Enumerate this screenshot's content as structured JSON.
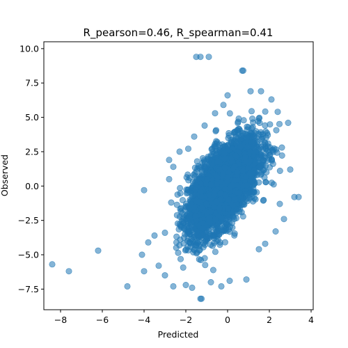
{
  "chart_data": {
    "type": "scatter",
    "title": "R_pearson=0.46, R_spearman=0.41",
    "xlabel": "Predicted",
    "ylabel": "Observed",
    "xlim": [
      -8.8,
      4.1
    ],
    "ylim": [
      -9.0,
      10.5
    ],
    "xticks": [
      -8,
      -6,
      -4,
      -2,
      0,
      2,
      4
    ],
    "yticks": [
      -7.5,
      -5.0,
      -2.5,
      0.0,
      2.5,
      5.0,
      7.5,
      10.0
    ],
    "xtick_labels": [
      "−8",
      "−6",
      "−4",
      "−2",
      "0",
      "2",
      "4"
    ],
    "ytick_labels": [
      "−7.5",
      "−5.0",
      "−2.5",
      "0.0",
      "2.5",
      "5.0",
      "7.5",
      "10.0"
    ],
    "grid": false,
    "point_color": "#1f77b4",
    "point_alpha": 0.55,
    "cloud": {
      "description_of_shape": "dense elliptical cloud of many thousands of points",
      "center": [
        -0.2,
        0.0
      ],
      "x_range": [
        -2.5,
        2.8
      ],
      "y_range": [
        -6.8,
        7.0
      ]
    },
    "points": [
      {
        "x": -8.4,
        "y": -5.7
      },
      {
        "x": -7.6,
        "y": -6.2
      },
      {
        "x": -6.2,
        "y": -4.7
      },
      {
        "x": -4.8,
        "y": -7.3
      },
      {
        "x": -4.0,
        "y": -0.3
      },
      {
        "x": -4.0,
        "y": -6.2
      },
      {
        "x": -4.1,
        "y": -5.0
      },
      {
        "x": -3.8,
        "y": -4.1
      },
      {
        "x": -3.5,
        "y": -3.6
      },
      {
        "x": -3.3,
        "y": -5.8
      },
      {
        "x": -3.0,
        "y": -6.5
      },
      {
        "x": -2.8,
        "y": 1.9
      },
      {
        "x": -2.6,
        "y": -7.3
      },
      {
        "x": -1.5,
        "y": 9.4
      },
      {
        "x": -1.3,
        "y": 9.4
      },
      {
        "x": -0.9,
        "y": 9.4
      },
      {
        "x": 0.7,
        "y": 8.4
      },
      {
        "x": 0.75,
        "y": 8.4
      },
      {
        "x": -1.3,
        "y": -8.2
      },
      {
        "x": -1.25,
        "y": -8.2
      },
      {
        "x": 2.9,
        "y": 4.6
      },
      {
        "x": 3.2,
        "y": -0.8
      },
      {
        "x": 3.4,
        "y": -0.8
      },
      {
        "x": 3.0,
        "y": 1.2
      },
      {
        "x": 2.7,
        "y": -2.4
      },
      {
        "x": 2.6,
        "y": 2.8
      },
      {
        "x": 2.5,
        "y": -1.3
      },
      {
        "x": 2.3,
        "y": -3.3
      },
      {
        "x": 1.8,
        "y": -4.2
      },
      {
        "x": 1.5,
        "y": -4.6
      },
      {
        "x": 0.9,
        "y": -6.8
      },
      {
        "x": 0.1,
        "y": -6.9
      },
      {
        "x": -0.3,
        "y": -7.3
      },
      {
        "x": -0.8,
        "y": -7.0
      },
      {
        "x": -1.7,
        "y": -7.4
      },
      {
        "x": -2.0,
        "y": -7.2
      },
      {
        "x": 1.6,
        "y": 6.9
      },
      {
        "x": 1.1,
        "y": 6.9
      },
      {
        "x": 0.0,
        "y": 6.6
      },
      {
        "x": -0.2,
        "y": 5.9
      },
      {
        "x": -0.6,
        "y": 5.3
      },
      {
        "x": -1.1,
        "y": 4.4
      },
      {
        "x": -1.6,
        "y": 3.6
      },
      {
        "x": -2.3,
        "y": 2.5
      },
      {
        "x": -2.6,
        "y": 1.4
      },
      {
        "x": -2.8,
        "y": 0.5
      },
      {
        "x": 2.1,
        "y": 6.3
      },
      {
        "x": 2.4,
        "y": 5.4
      },
      {
        "x": -3.0,
        "y": -3.4
      },
      {
        "x": -2.7,
        "y": -1.2
      }
    ]
  }
}
